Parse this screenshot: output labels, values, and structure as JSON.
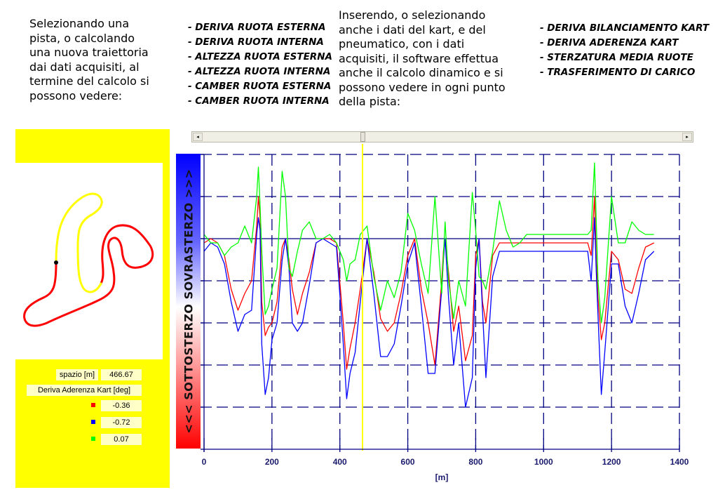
{
  "intro": {
    "left_text": "Selezionando una\npista, o calcolando\nuna nuova traiettoria\ndai dati acquisiti, al\ntermine del calcolo si\npossono vedere:",
    "middle_text": "Inserendo, o selezionando\nanche i dati del kart, e del\npneumatico, con i dati\nacquisiti, il software effettua\nanche il calcolo dinamico e si\npossono vedere in ogni punto\ndella pista:"
  },
  "features_track": [
    "- DERIVA RUOTA ESTERNA",
    "- DERIVA RUOTA INTERNA",
    "- ALTEZZA RUOTA ESTERNA",
    "- ALTEZZA RUOTA INTERNA",
    "- CAMBER RUOTA ESTERNA",
    "- CAMBER RUOTA INTERNA"
  ],
  "features_dynamic": [
    "- DERIVA BILANCIAMENTO KART",
    "- DERIVA ADERENZA KART",
    "- STERZATURA MEDIA RUOTE",
    "- TRASFERIMENTO DI CARICO"
  ],
  "info_panel": {
    "space_label": "spazio [m]",
    "space_value": "466.67",
    "quantity_label": "Deriva Aderenza Kart [deg]",
    "values": [
      {
        "color": "#ff0000",
        "value": "-0.36"
      },
      {
        "color": "#0000ff",
        "value": "-0.72"
      },
      {
        "color": "#00ff00",
        "value": "0.07"
      }
    ]
  },
  "scrollbar": {
    "left_arrow": "◂",
    "right_arrow": "▸",
    "position_m": 466.67
  },
  "gradient_bar": {
    "label": "<<< SOTTOSTERZO  SOVRASTERZO >>>",
    "top_color": "#0000ff",
    "bottom_color": "#ff0000"
  },
  "colors": {
    "accent_yellow": "#ffff00",
    "axis": "#000080",
    "series_red": "#ff0000",
    "series_blue": "#0000ff",
    "series_green": "#00ff00"
  },
  "chart_data": {
    "type": "line",
    "title": "",
    "xlabel": "[m]",
    "ylabel": "<<< SOTTOSTERZO  SOVRASTERZO >>>",
    "xlim": [
      0,
      1400
    ],
    "ylim": [
      -5,
      2
    ],
    "x_ticks": [
      "0",
      "200",
      "400",
      "600",
      "800",
      "1000",
      "1200",
      "1400"
    ],
    "grid": true,
    "cursor_x": 466.67,
    "legend": "none",
    "x": [
      0,
      20,
      40,
      60,
      80,
      100,
      120,
      140,
      155,
      160,
      165,
      170,
      180,
      190,
      200,
      215,
      230,
      240,
      250,
      260,
      275,
      290,
      310,
      330,
      350,
      370,
      390,
      410,
      420,
      430,
      445,
      460,
      480,
      500,
      520,
      540,
      560,
      580,
      600,
      620,
      640,
      660,
      680,
      700,
      705,
      710,
      720,
      735,
      750,
      770,
      790,
      800,
      810,
      820,
      830,
      850,
      870,
      890,
      910,
      930,
      950,
      970,
      990,
      1010,
      1030,
      1050,
      1070,
      1090,
      1110,
      1130,
      1140,
      1150,
      1155,
      1160,
      1170,
      1180,
      1200,
      1220,
      1240,
      1260,
      1280,
      1300,
      1325
    ],
    "series": [
      {
        "name": "red",
        "values": [
          -0.1,
          0,
          -0.1,
          -0.4,
          -1.2,
          -1.7,
          -1.3,
          -1.0,
          0.3,
          1.0,
          0.5,
          -1.5,
          -2.3,
          -2.1,
          -2.0,
          -1.5,
          -0.2,
          0,
          -0.5,
          -1.2,
          -1.8,
          -1.3,
          -0.8,
          -0.1,
          0,
          0,
          -0.1,
          -2.0,
          -3.1,
          -2.6,
          -2.0,
          -1.2,
          0,
          -0.8,
          -1.9,
          -2.2,
          -2.0,
          -1.3,
          -0.4,
          0,
          -1.2,
          -2.0,
          -3.0,
          -1.0,
          -0.3,
          0,
          -0.8,
          -2.2,
          -1.6,
          -2.9,
          -2.3,
          -0.4,
          0,
          -1.5,
          -2.0,
          -0.4,
          -0.1,
          -0.1,
          -0.1,
          -0.1,
          -0.1,
          -0.1,
          -0.1,
          -0.1,
          -0.1,
          -0.1,
          -0.1,
          -0.1,
          -0.1,
          -0.1,
          -0.4,
          1.0,
          -0.5,
          -1.4,
          -2.4,
          -2.0,
          -0.3,
          -0.5,
          -1.2,
          -1.3,
          -0.7,
          -0.2,
          -0.1
        ]
      },
      {
        "name": "blue",
        "values": [
          -0.3,
          -0.1,
          -0.2,
          -0.6,
          -1.5,
          -2.2,
          -1.8,
          -1.7,
          0.1,
          0.5,
          0.2,
          -2.5,
          -3.7,
          -3.3,
          -2.4,
          -2.0,
          -0.5,
          0,
          -0.7,
          -2.0,
          -2.2,
          -2.0,
          -1.1,
          -0.1,
          0,
          -0.1,
          -0.2,
          -2.5,
          -3.8,
          -3.2,
          -2.7,
          -1.5,
          0,
          -1.3,
          -2.8,
          -2.8,
          -2.5,
          -1.6,
          -0.6,
          -0.1,
          -1.6,
          -3.2,
          -3.2,
          -1.2,
          -0.5,
          0,
          -1.4,
          -3.0,
          -2.0,
          -4.0,
          -3.3,
          -0.7,
          0,
          -1.7,
          -3.3,
          -0.9,
          -0.3,
          -0.3,
          -0.3,
          -0.3,
          -0.3,
          -0.3,
          -0.3,
          -0.3,
          -0.3,
          -0.3,
          -0.3,
          -0.3,
          -0.3,
          -0.3,
          -1.0,
          0.5,
          -0.8,
          -1.8,
          -3.7,
          -2.7,
          -0.6,
          -0.6,
          -1.6,
          -2.0,
          -1.3,
          -0.5,
          -0.3
        ]
      },
      {
        "name": "green",
        "values": [
          0.1,
          -0.1,
          -0.1,
          -0.4,
          -0.2,
          -0.1,
          0.3,
          -0.1,
          1.0,
          1.7,
          0.8,
          -0.3,
          -1.8,
          -1.6,
          -1.2,
          -0.7,
          1.6,
          1.0,
          -0.7,
          -0.9,
          -0.3,
          0.2,
          0.4,
          0,
          0,
          0.1,
          -0.1,
          -0.5,
          -1.0,
          -0.6,
          -0.5,
          0.1,
          0.3,
          -0.9,
          -1.7,
          -1.0,
          -1.4,
          -0.8,
          0.6,
          0.2,
          -0.6,
          -1.3,
          1.0,
          -1.3,
          -0.4,
          0.4,
          -1.0,
          -1.9,
          -1.0,
          -1.6,
          1.1,
          0.2,
          -0.9,
          -1.0,
          -1.2,
          -0.3,
          0.9,
          0.2,
          -0.2,
          -0.1,
          0.1,
          0.1,
          0.1,
          0.1,
          0.1,
          0.1,
          0.1,
          0.1,
          0.1,
          0.1,
          0.2,
          1.8,
          0.4,
          -1.0,
          -2.0,
          -1.4,
          1.0,
          -0.1,
          -0.1,
          0.4,
          0.2,
          0.1,
          0.1
        ]
      }
    ]
  }
}
